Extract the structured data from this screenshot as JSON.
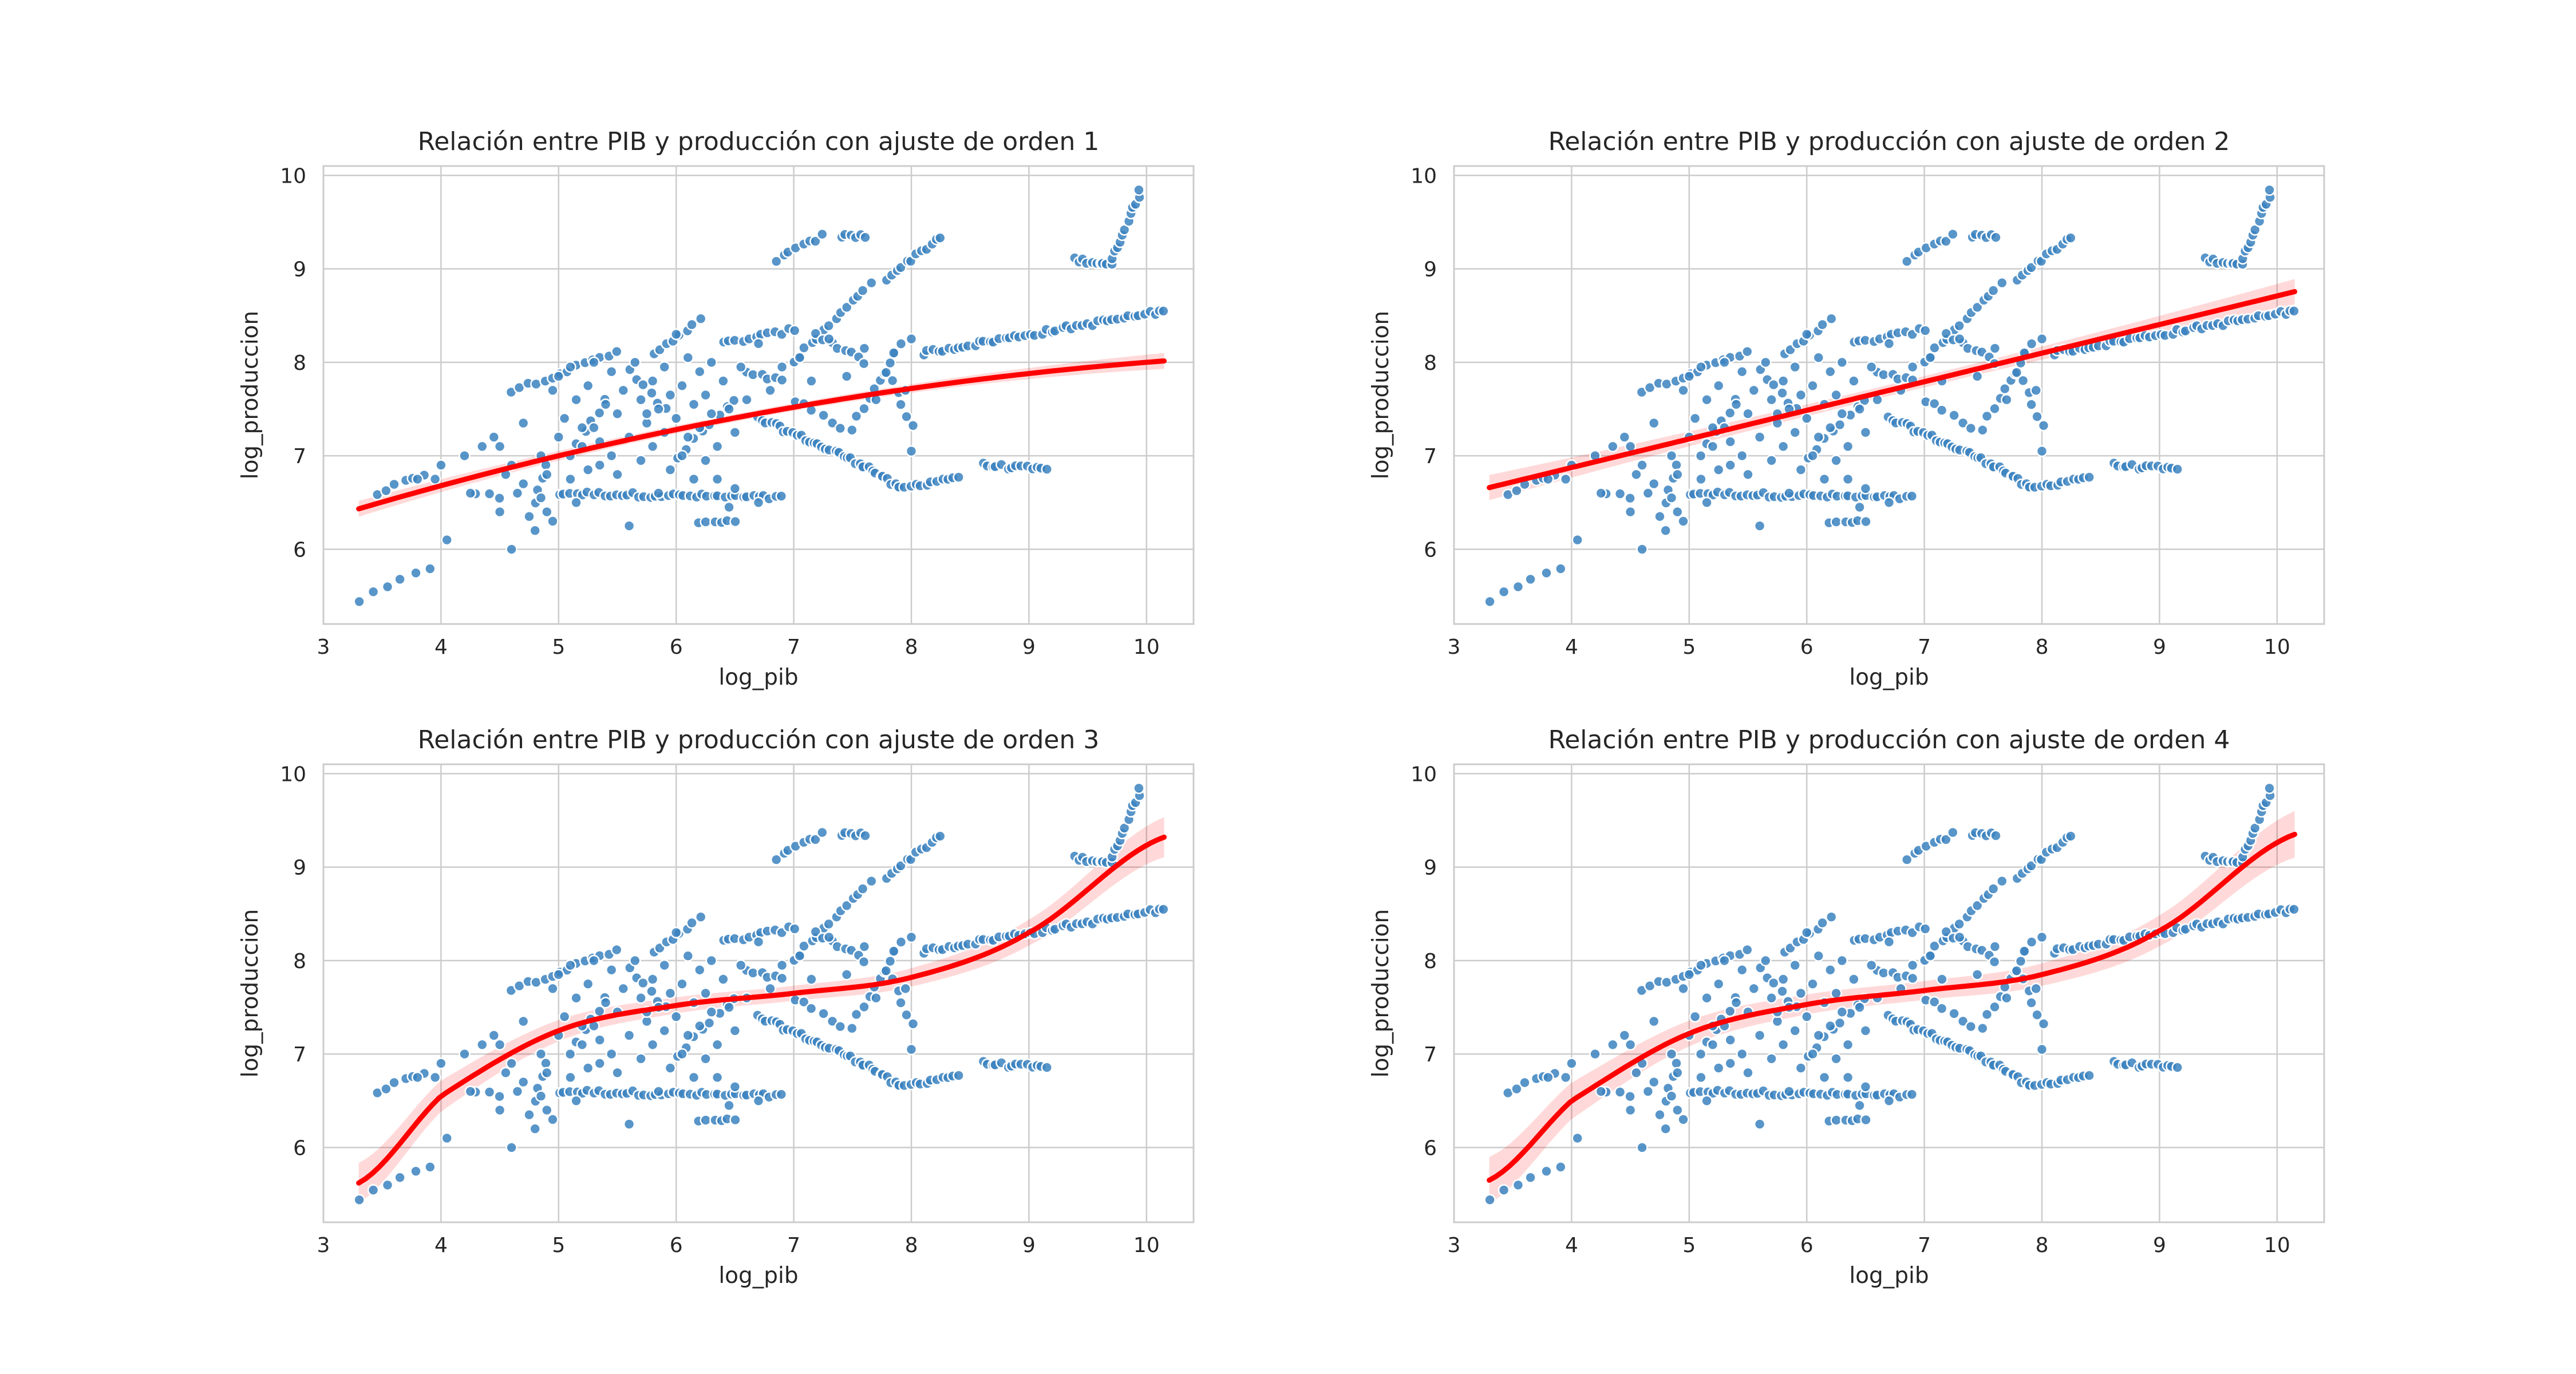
{
  "chart_data": [
    {
      "type": "scatter",
      "title": "Relación entre PIB y producción con ajuste de orden 1",
      "xlabel": "log_pib",
      "ylabel": "log_produccion",
      "xlim": [
        3.0,
        10.4
      ],
      "ylim": [
        5.2,
        10.1
      ],
      "xticks": [
        "3",
        "4",
        "5",
        "6",
        "7",
        "8",
        "9",
        "10"
      ],
      "yticks": [
        "6",
        "7",
        "8",
        "9",
        "10"
      ],
      "grid": true,
      "fit": {
        "order": 1,
        "coefficients": [
          -0.02,
          0.5,
          5.0
        ],
        "x_range": [
          3.3,
          10.15
        ],
        "band_base": 0.04,
        "band_slope": 0.03,
        "color": "#ff0000"
      }
    },
    {
      "type": "scatter",
      "title": "Relación entre PIB y producción con ajuste de orden 2",
      "xlabel": "log_pib",
      "ylabel": "log_produccion",
      "xlim": [
        3.0,
        10.4
      ],
      "ylim": [
        5.2,
        10.1
      ],
      "xticks": [
        "3",
        "4",
        "5",
        "6",
        "7",
        "8",
        "9",
        "10"
      ],
      "yticks": [
        "6",
        "7",
        "8",
        "9",
        "10"
      ],
      "grid": true,
      "fit": {
        "order": 2,
        "coefficients": [
          0.0,
          0.306,
          5.65
        ],
        "x_range": [
          3.3,
          10.15
        ],
        "band_base": 0.06,
        "band_slope": 0.05,
        "color": "#ff0000"
      }
    },
    {
      "type": "scatter",
      "title": "Relación entre PIB y producción con ajuste de orden 3",
      "xlabel": "log_pib",
      "ylabel": "log_produccion",
      "xlim": [
        3.0,
        10.4
      ],
      "ylim": [
        5.2,
        10.1
      ],
      "xticks": [
        "3",
        "4",
        "5",
        "6",
        "7",
        "8",
        "9",
        "10"
      ],
      "yticks": [
        "6",
        "7",
        "8",
        "9",
        "10"
      ],
      "grid": true,
      "fit": {
        "order": 3,
        "x_nodes": [
          3.3,
          4.0,
          5.0,
          6.0,
          7.0,
          8.0,
          9.0,
          10.15
        ],
        "y_nodes": [
          5.62,
          6.55,
          7.25,
          7.52,
          7.65,
          7.82,
          8.3,
          9.32
        ],
        "x_range": [
          3.3,
          10.15
        ],
        "band_base": 0.08,
        "band_slope": 0.09,
        "color": "#ff0000"
      }
    },
    {
      "type": "scatter",
      "title": "Relación entre PIB y producción con ajuste de orden 4",
      "xlabel": "log_pib",
      "ylabel": "log_produccion",
      "xlim": [
        3.0,
        10.4
      ],
      "ylim": [
        5.2,
        10.1
      ],
      "xticks": [
        "3",
        "4",
        "5",
        "6",
        "7",
        "8",
        "9",
        "10"
      ],
      "yticks": [
        "6",
        "7",
        "8",
        "9",
        "10"
      ],
      "grid": true,
      "fit": {
        "order": 4,
        "x_nodes": [
          3.3,
          4.0,
          5.0,
          6.0,
          7.0,
          8.0,
          9.0,
          10.15
        ],
        "y_nodes": [
          5.65,
          6.5,
          7.22,
          7.53,
          7.68,
          7.85,
          8.32,
          9.35
        ],
        "x_range": [
          3.3,
          10.15
        ],
        "band_base": 0.1,
        "band_slope": 0.1,
        "color": "#ff0000"
      }
    }
  ],
  "scatter_points": {
    "color": "#3b82c0",
    "segments": [
      [
        [
          3.3,
          5.45
        ],
        [
          3.9,
          5.8
        ],
        6
      ],
      [
        [
          3.45,
          6.6
        ],
        [
          3.85,
          6.8
        ],
        6
      ],
      [
        [
          4.3,
          6.6
        ],
        [
          4.5,
          6.55
        ],
        3
      ],
      [
        [
          5.0,
          6.6
        ],
        [
          6.9,
          6.55
        ],
        40
      ],
      [
        [
          6.7,
          7.4
        ],
        [
          7.6,
          6.9
        ],
        26
      ],
      [
        [
          7.6,
          6.9
        ],
        [
          7.9,
          6.65
        ],
        10
      ],
      [
        [
          7.9,
          6.65
        ],
        [
          8.4,
          6.78
        ],
        12
      ],
      [
        [
          8.6,
          6.9
        ],
        [
          9.15,
          6.85
        ],
        14
      ],
      [
        [
          6.85,
          9.1
        ],
        [
          7.25,
          9.35
        ],
        8
      ],
      [
        [
          7.4,
          9.35
        ],
        [
          7.6,
          9.35
        ],
        6
      ],
      [
        [
          7.8,
          8.9
        ],
        [
          8.25,
          9.35
        ],
        12
      ],
      [
        [
          7.0,
          8.0
        ],
        [
          7.65,
          8.85
        ],
        14
      ],
      [
        [
          7.5,
          7.3
        ],
        [
          7.9,
          8.2
        ],
        10
      ],
      [
        [
          7.2,
          8.3
        ],
        [
          7.6,
          8.0
        ],
        8
      ],
      [
        [
          8.1,
          8.1
        ],
        [
          10.15,
          8.55
        ],
        48
      ],
      [
        [
          9.4,
          9.1
        ],
        [
          9.7,
          9.05
        ],
        10
      ],
      [
        [
          9.7,
          9.1
        ],
        [
          9.95,
          9.85
        ],
        12
      ],
      [
        [
          4.6,
          7.7
        ],
        [
          5.5,
          8.1
        ],
        14
      ],
      [
        [
          5.8,
          8.1
        ],
        [
          6.2,
          8.45
        ],
        8
      ],
      [
        [
          6.4,
          8.2
        ],
        [
          7.0,
          8.35
        ],
        12
      ],
      [
        [
          6.2,
          6.3
        ],
        [
          6.5,
          6.3
        ],
        6
      ],
      [
        [
          6.6,
          7.9
        ],
        [
          6.9,
          7.8
        ],
        6
      ],
      [
        [
          7.8,
          7.9
        ],
        [
          8.0,
          7.3
        ],
        6
      ],
      [
        [
          6.0,
          7.0
        ],
        [
          6.5,
          7.6
        ],
        8
      ],
      [
        [
          5.6,
          7.9
        ],
        [
          5.9,
          7.5
        ],
        6
      ],
      [
        [
          5.1,
          7.0
        ],
        [
          5.4,
          7.6
        ],
        6
      ],
      [
        [
          4.8,
          6.5
        ],
        [
          4.9,
          6.9
        ],
        4
      ],
      [
        [
          7.0,
          7.6
        ],
        [
          7.4,
          7.3
        ],
        6
      ]
    ],
    "scattered": [
      [
        3.8,
        6.75
      ],
      [
        3.95,
        6.75
      ],
      [
        4.0,
        6.9
      ],
      [
        4.05,
        6.1
      ],
      [
        4.2,
        7.0
      ],
      [
        4.25,
        6.6
      ],
      [
        4.35,
        7.1
      ],
      [
        4.45,
        7.2
      ],
      [
        4.5,
        6.4
      ],
      [
        4.5,
        7.1
      ],
      [
        4.55,
        6.8
      ],
      [
        4.6,
        6.0
      ],
      [
        4.6,
        6.9
      ],
      [
        4.65,
        6.6
      ],
      [
        4.7,
        7.35
      ],
      [
        4.7,
        6.7
      ],
      [
        4.75,
        6.35
      ],
      [
        4.8,
        6.2
      ],
      [
        4.85,
        7.0
      ],
      [
        4.85,
        6.55
      ],
      [
        4.9,
        6.4
      ],
      [
        4.9,
        6.8
      ],
      [
        4.95,
        7.7
      ],
      [
        4.95,
        6.3
      ],
      [
        5.0,
        7.85
      ],
      [
        5.0,
        7.2
      ],
      [
        5.05,
        7.4
      ],
      [
        5.1,
        6.75
      ],
      [
        5.1,
        7.95
      ],
      [
        5.15,
        6.5
      ],
      [
        5.15,
        7.6
      ],
      [
        5.2,
        7.1
      ],
      [
        5.25,
        6.85
      ],
      [
        5.25,
        7.75
      ],
      [
        5.3,
        8.0
      ],
      [
        5.3,
        7.3
      ],
      [
        5.35,
        6.9
      ],
      [
        5.4,
        7.55
      ],
      [
        5.45,
        7.9
      ],
      [
        5.45,
        7.0
      ],
      [
        5.5,
        6.8
      ],
      [
        5.5,
        7.45
      ],
      [
        5.55,
        7.7
      ],
      [
        5.6,
        6.25
      ],
      [
        5.6,
        7.2
      ],
      [
        5.65,
        8.0
      ],
      [
        5.7,
        7.6
      ],
      [
        5.7,
        6.95
      ],
      [
        5.75,
        7.35
      ],
      [
        5.8,
        7.8
      ],
      [
        5.8,
        7.1
      ],
      [
        5.85,
        6.6
      ],
      [
        5.85,
        7.5
      ],
      [
        5.9,
        7.95
      ],
      [
        5.9,
        7.25
      ],
      [
        5.95,
        7.65
      ],
      [
        5.95,
        6.85
      ],
      [
        6.0,
        8.3
      ],
      [
        6.0,
        7.4
      ],
      [
        6.05,
        7.0
      ],
      [
        6.05,
        7.75
      ],
      [
        6.1,
        7.2
      ],
      [
        6.1,
        8.05
      ],
      [
        6.15,
        7.55
      ],
      [
        6.15,
        6.75
      ],
      [
        6.2,
        7.9
      ],
      [
        6.2,
        7.3
      ],
      [
        6.25,
        7.65
      ],
      [
        6.25,
        6.95
      ],
      [
        6.3,
        7.45
      ],
      [
        6.3,
        8.0
      ],
      [
        6.35,
        7.1
      ],
      [
        6.4,
        7.8
      ],
      [
        6.45,
        7.5
      ],
      [
        6.5,
        7.25
      ],
      [
        6.55,
        7.95
      ],
      [
        6.6,
        7.6
      ],
      [
        6.7,
        8.2
      ],
      [
        6.8,
        7.7
      ],
      [
        6.9,
        7.95
      ],
      [
        7.05,
        8.05
      ],
      [
        7.15,
        7.8
      ],
      [
        7.3,
        8.25
      ],
      [
        7.45,
        7.85
      ],
      [
        7.6,
        8.15
      ],
      [
        7.7,
        7.6
      ],
      [
        7.85,
        8.1
      ],
      [
        7.95,
        7.7
      ],
      [
        8.0,
        7.05
      ],
      [
        8.0,
        8.25
      ],
      [
        5.35,
        7.15
      ],
      [
        5.2,
        7.3
      ],
      [
        5.75,
        7.45
      ],
      [
        6.45,
        6.45
      ],
      [
        6.5,
        6.65
      ],
      [
        6.35,
        6.75
      ],
      [
        6.7,
        6.5
      ]
    ]
  }
}
